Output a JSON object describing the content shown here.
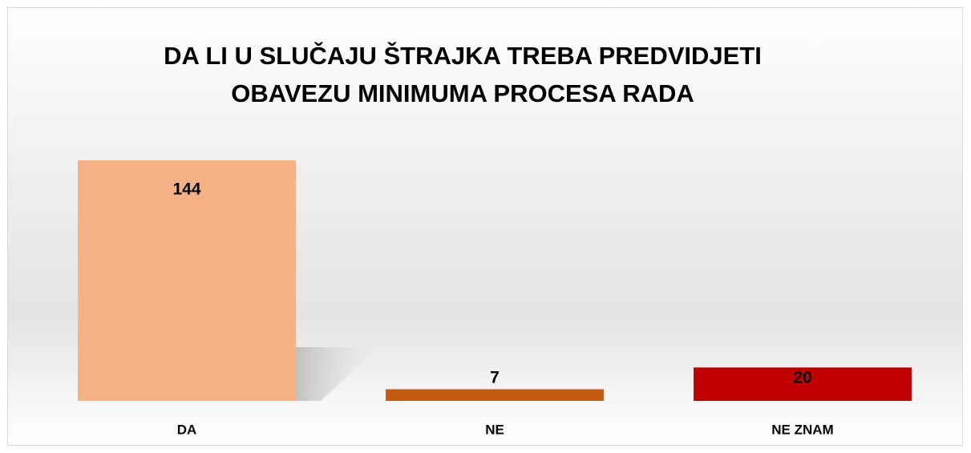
{
  "chart_data": {
    "type": "bar",
    "title": [
      "DA LI U SLUČAJU ŠTRAJKA TREBA PREDVIDJETI",
      "OBAVEZU MINIMUMA PROCESA RADA"
    ],
    "categories": [
      "DA",
      "NE",
      "NE ZNAM"
    ],
    "values": [
      144,
      7,
      20
    ],
    "colors": [
      "#f4b183",
      "#c55a11",
      "#c00000"
    ]
  }
}
